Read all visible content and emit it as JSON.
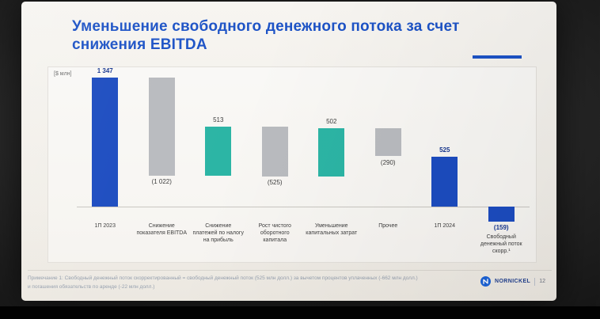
{
  "slide": {
    "title": {
      "line1": "Уменьшение свободного денежного потока за счет",
      "line2": "снижения EBITDA"
    },
    "axis_unit": "[$ млн]",
    "footnote": {
      "line1": "Примечание 1: Свободный денежный поток скорректированный = свободный денежный поток (525 млн долл.) за вычетом процентов уплаченных (-662 млн долл.)",
      "line2": "и погашения обязательств по аренде (-22 млн долл.)"
    },
    "footer": {
      "logo_text": "NORNICKEL",
      "page_number": "12"
    },
    "colors": {
      "title_blue": "#1d53c6"
    }
  },
  "chart_data": {
    "type": "bar",
    "subtype": "waterfall",
    "title": "Уменьшение свободного денежного потока за счет снижения EBITDA",
    "unit": "$ млн",
    "categories": [
      "1П 2023",
      "Снижение показателя EBITDA",
      "Снижение платежей по налогу на прибыль",
      "Рост чистого оборотного капитала",
      "Уменьшение капитальных затрат",
      "Прочее",
      "1П 2024",
      "Свободный денежный поток скорр.¹"
    ],
    "values": [
      1347,
      -1022,
      513,
      -525,
      502,
      -290,
      525,
      -159
    ],
    "labels": [
      "1 347",
      "(1 022)",
      "513",
      "(525)",
      "502",
      "(290)",
      "525",
      "(159)"
    ],
    "bar_kinds": [
      "total",
      "decrease",
      "increase",
      "decrease",
      "increase",
      "decrease",
      "total",
      "negative-total"
    ],
    "colors": {
      "total": "#1c4cc0",
      "decrease": "#b9bbbf",
      "increase": "#2cb5a5",
      "negative-total": "#1c4cc0"
    },
    "ylim": [
      -200,
      1400
    ],
    "grid": false,
    "legend": false
  }
}
